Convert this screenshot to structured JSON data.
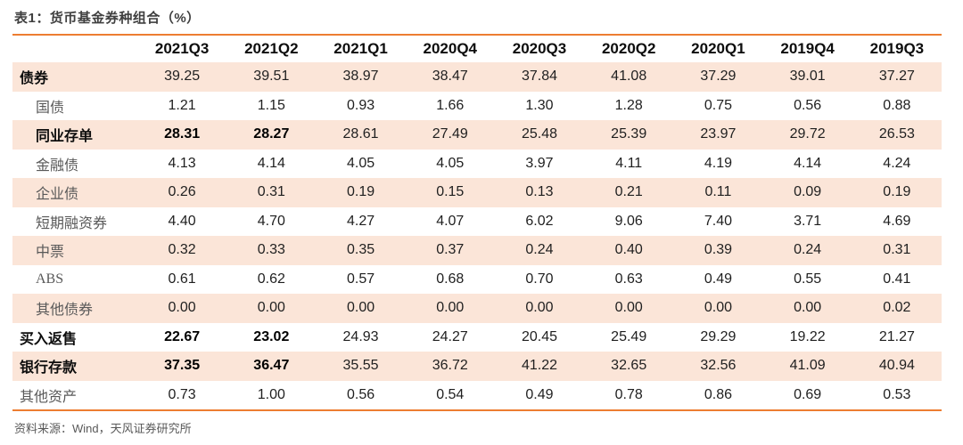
{
  "title": "表1：货币基金券种组合（%）",
  "source_note": "资料来源：Wind，天风证券研究所",
  "colors": {
    "accent_orange": "#ED7D31",
    "row_shade": "#FBE5D8",
    "title_text": "#3F3F3F",
    "sub_label_gray": "#595959",
    "value_text": "#1F1F1F"
  },
  "chart_data": {
    "type": "table",
    "columns": [
      "2021Q3",
      "2021Q2",
      "2021Q1",
      "2020Q4",
      "2020Q3",
      "2020Q2",
      "2020Q1",
      "2019Q4",
      "2019Q3"
    ],
    "rows": [
      {
        "label": "债券",
        "indent": 0,
        "label_style": "bold",
        "bold_value_cols": [],
        "values": [
          "39.25",
          "39.51",
          "38.97",
          "38.47",
          "37.84",
          "41.08",
          "37.29",
          "39.01",
          "37.27"
        ]
      },
      {
        "label": "国债",
        "indent": 1,
        "label_style": "gray",
        "bold_value_cols": [],
        "values": [
          "1.21",
          "1.15",
          "0.93",
          "1.66",
          "1.30",
          "1.28",
          "0.75",
          "0.56",
          "0.88"
        ]
      },
      {
        "label": "同业存单",
        "indent": 1,
        "label_style": "bold",
        "bold_value_cols": [
          0,
          1
        ],
        "values": [
          "28.31",
          "28.27",
          "28.61",
          "27.49",
          "25.48",
          "25.39",
          "23.97",
          "29.72",
          "26.53"
        ]
      },
      {
        "label": "金融债",
        "indent": 1,
        "label_style": "gray",
        "bold_value_cols": [],
        "values": [
          "4.13",
          "4.14",
          "4.05",
          "4.05",
          "3.97",
          "4.11",
          "4.19",
          "4.14",
          "4.24"
        ]
      },
      {
        "label": "企业债",
        "indent": 1,
        "label_style": "gray",
        "bold_value_cols": [],
        "values": [
          "0.26",
          "0.31",
          "0.19",
          "0.15",
          "0.13",
          "0.21",
          "0.11",
          "0.09",
          "0.19"
        ]
      },
      {
        "label": "短期融资券",
        "indent": 1,
        "label_style": "gray",
        "bold_value_cols": [],
        "values": [
          "4.40",
          "4.70",
          "4.27",
          "4.07",
          "6.02",
          "9.06",
          "7.40",
          "3.71",
          "4.69"
        ]
      },
      {
        "label": "中票",
        "indent": 1,
        "label_style": "gray",
        "bold_value_cols": [],
        "values": [
          "0.32",
          "0.33",
          "0.35",
          "0.37",
          "0.24",
          "0.40",
          "0.39",
          "0.24",
          "0.31"
        ]
      },
      {
        "label": "ABS",
        "indent": 1,
        "label_style": "gray-serif",
        "bold_value_cols": [],
        "values": [
          "0.61",
          "0.62",
          "0.57",
          "0.68",
          "0.70",
          "0.63",
          "0.49",
          "0.55",
          "0.41"
        ]
      },
      {
        "label": "其他债券",
        "indent": 1,
        "label_style": "gray",
        "bold_value_cols": [],
        "values": [
          "0.00",
          "0.00",
          "0.00",
          "0.00",
          "0.00",
          "0.00",
          "0.00",
          "0.00",
          "0.02"
        ]
      },
      {
        "label": "买入返售",
        "indent": 0,
        "label_style": "bold",
        "bold_value_cols": [
          0,
          1
        ],
        "values": [
          "22.67",
          "23.02",
          "24.93",
          "24.27",
          "20.45",
          "25.49",
          "29.29",
          "19.22",
          "21.27"
        ]
      },
      {
        "label": "银行存款",
        "indent": 0,
        "label_style": "bold",
        "bold_value_cols": [
          0,
          1
        ],
        "values": [
          "37.35",
          "36.47",
          "35.55",
          "36.72",
          "41.22",
          "32.65",
          "32.56",
          "41.09",
          "40.94"
        ]
      },
      {
        "label": "其他资产",
        "indent": 0,
        "label_style": "gray",
        "bold_value_cols": [],
        "values": [
          "0.73",
          "1.00",
          "0.56",
          "0.54",
          "0.49",
          "0.78",
          "0.86",
          "0.69",
          "0.53"
        ]
      }
    ]
  }
}
